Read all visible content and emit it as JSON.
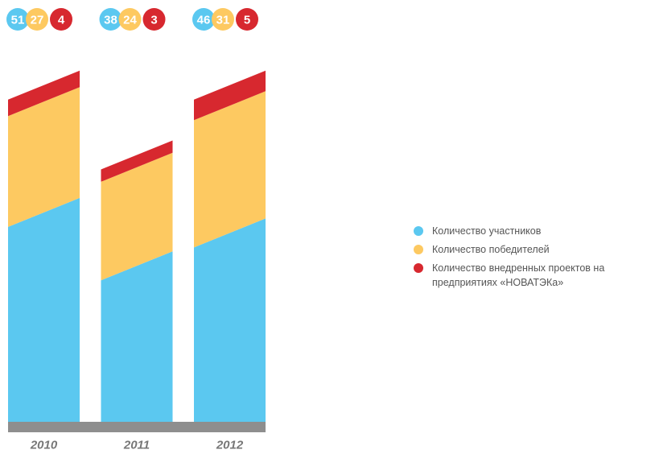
{
  "chart_data": {
    "type": "bar",
    "stacked": true,
    "categories": [
      "2010",
      "2011",
      "2012"
    ],
    "series": [
      {
        "name": "Количество участников",
        "color": "#5bc8f0",
        "values": [
          51,
          38,
          46
        ]
      },
      {
        "name": "Количество победителей",
        "color": "#fdc961",
        "values": [
          27,
          24,
          31
        ]
      },
      {
        "name": "Количество внедренных проектов на предприятиях «НОВАТЭКа»",
        "color": "#d7282f",
        "values": [
          4,
          3,
          5
        ]
      }
    ]
  }
}
